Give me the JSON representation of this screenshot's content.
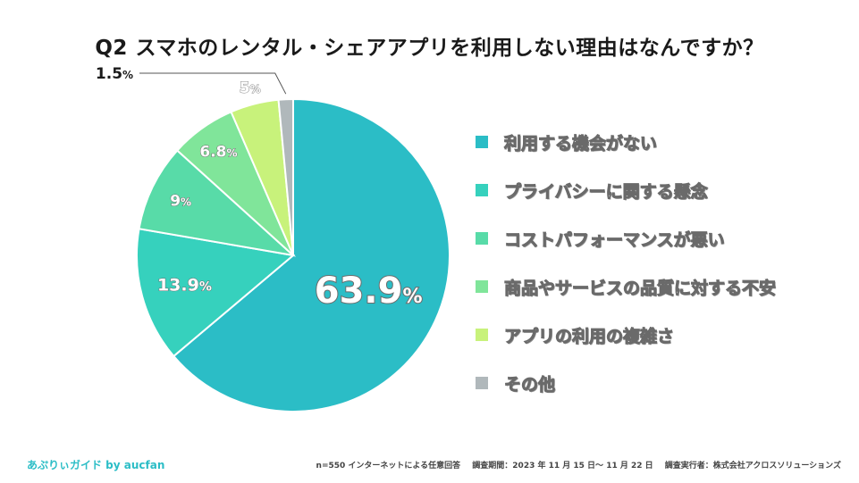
{
  "title": "Q2 スマホのレンタル・シェアアプリを利用しない理由はなんですか？",
  "chart_data": {
    "type": "pie",
    "title": "Q2 スマホのレンタル・シェアアプリを利用しない理由はなんですか？",
    "unit": "%",
    "start": "12 o'clock, clockwise",
    "slices": [
      {
        "label": "利用する機会がない",
        "value": 63.9,
        "display": "63.9",
        "color": "#2bbdc6"
      },
      {
        "label": "プライバシーに関する懸念",
        "value": 13.9,
        "display": "13.9",
        "color": "#36d1bd"
      },
      {
        "label": "コストパフォーマンスが悪い",
        "value": 9,
        "display": "9",
        "color": "#58dba8"
      },
      {
        "label": "商品やサービスの品質に対する不安",
        "value": 6.8,
        "display": "6.8",
        "color": "#80e59a"
      },
      {
        "label": "アプリの利用の複雑さ",
        "value": 5,
        "display": "5",
        "color": "#c8f27b"
      },
      {
        "label": "その他",
        "value": 1.5,
        "display": "1.5",
        "color": "#b0b8bb"
      }
    ]
  },
  "footer": {
    "brand": "あぷりぃガイド by aucfan",
    "sample": "n=550 インターネットによる任意回答",
    "period": "調査期間：2023 年 11 月 15 日〜 11 月 22 日",
    "conductor": "調査実行者：株式会社アクロスソリューションズ"
  }
}
